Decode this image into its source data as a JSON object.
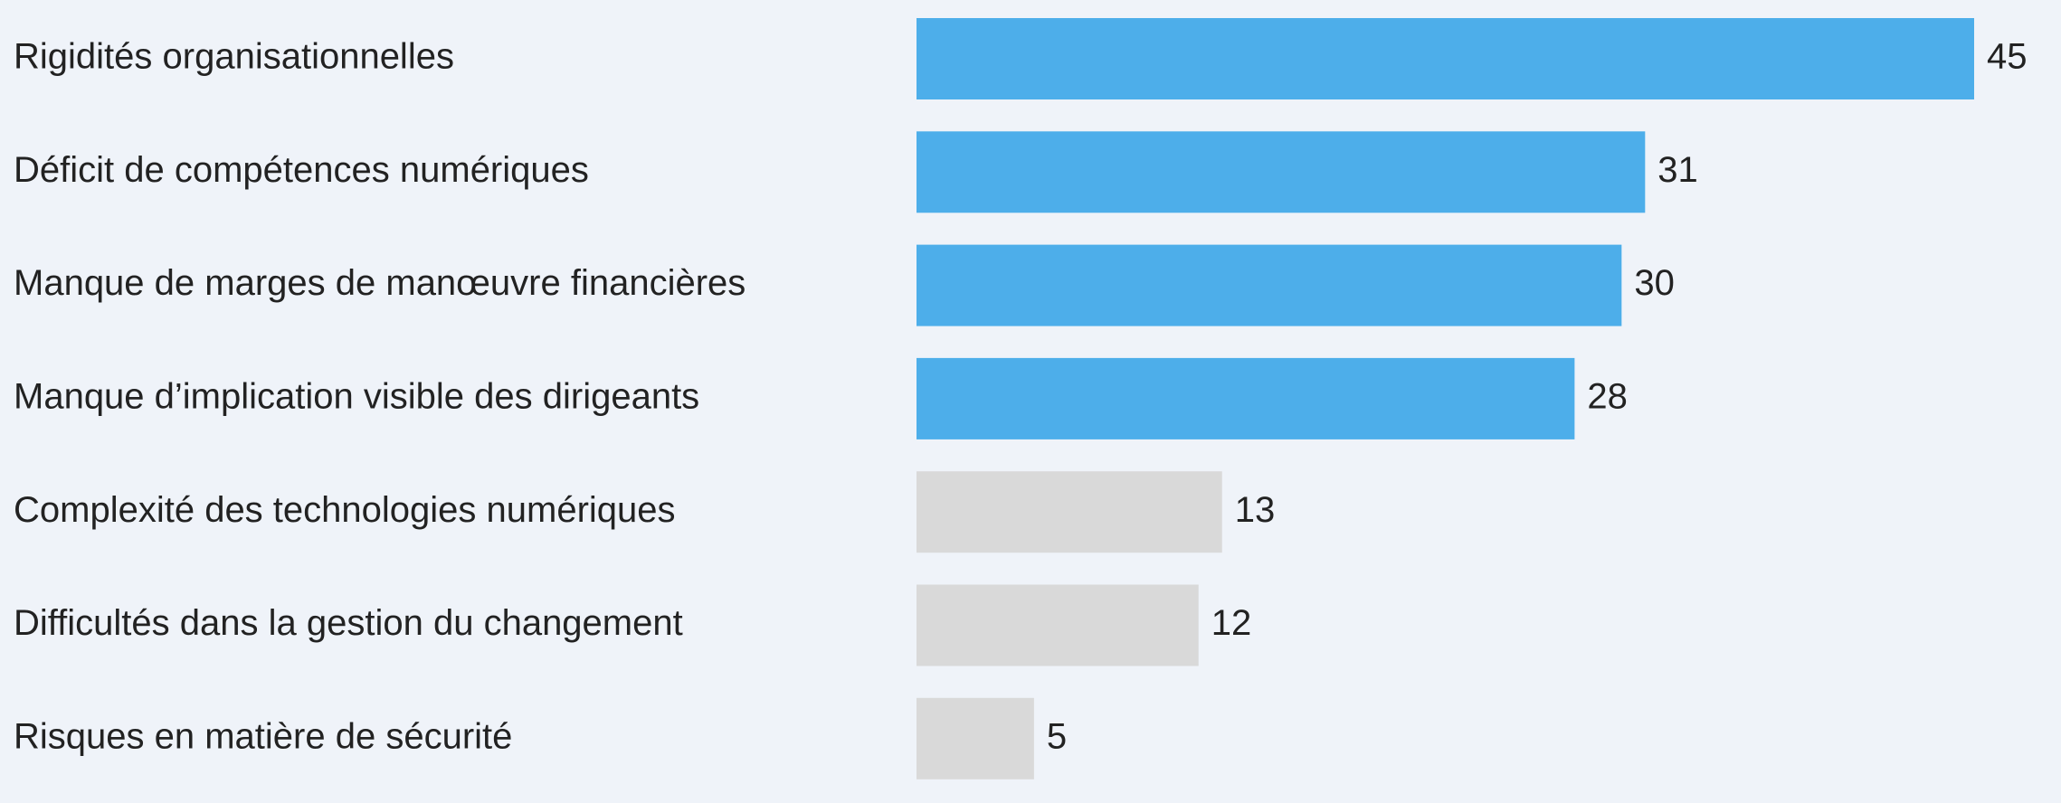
{
  "chart_data": {
    "type": "hbar",
    "categories": [
      "Rigidités organisationnelles",
      "Déficit de compétences numériques",
      "Manque de marges de manœuvre financières",
      "Manque d’implication visible des dirigeants",
      "Complexité des technologies numériques",
      "Difficultés dans la gestion du changement",
      "Risques en matière de sécurité"
    ],
    "values": [
      45,
      31,
      30,
      28,
      13,
      12,
      5
    ],
    "colors": [
      "#4daeea",
      "#4daeea",
      "#4daeea",
      "#4daeea",
      "#d9d9d9",
      "#d9d9d9",
      "#d9d9d9"
    ]
  }
}
